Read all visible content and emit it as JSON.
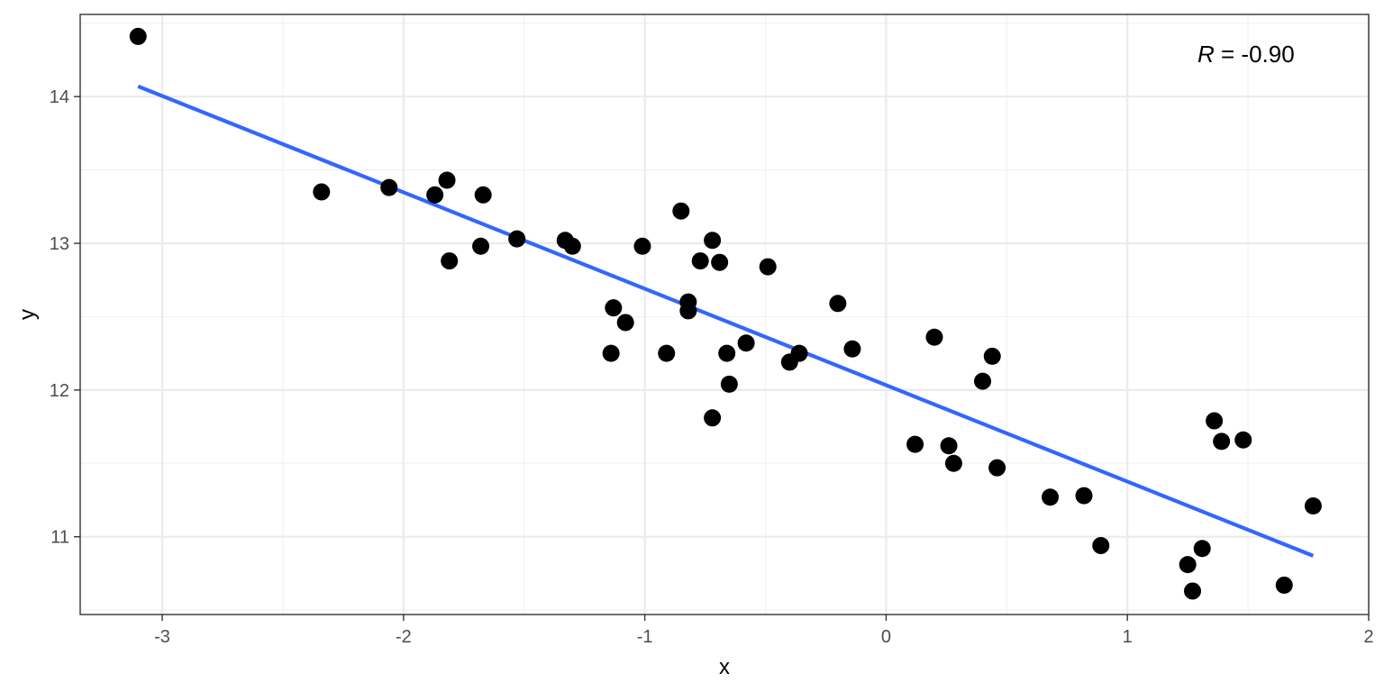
{
  "chart_data": {
    "type": "scatter",
    "xlabel": "x",
    "ylabel": "y",
    "xlim": [
      -3.34,
      2.0
    ],
    "ylim": [
      10.47,
      14.56
    ],
    "x_ticks": [
      -3,
      -2,
      -1,
      0,
      1,
      2
    ],
    "y_ticks": [
      11,
      12,
      13,
      14
    ],
    "x_tick_labels": [
      "-3",
      "-2",
      "-1",
      "0",
      "1",
      "2"
    ],
    "y_tick_labels": [
      "11",
      "12",
      "13",
      "14"
    ],
    "grid": true,
    "annotation": {
      "symbol": "R",
      "text": " = -0.90"
    },
    "series": [
      {
        "type": "points",
        "color": "#000000",
        "points": [
          {
            "x": -3.1,
            "y": 14.41
          },
          {
            "x": -2.34,
            "y": 13.35
          },
          {
            "x": -2.06,
            "y": 13.38
          },
          {
            "x": -1.87,
            "y": 13.33
          },
          {
            "x": -1.82,
            "y": 13.43
          },
          {
            "x": -1.81,
            "y": 12.88
          },
          {
            "x": -1.68,
            "y": 12.98
          },
          {
            "x": -1.67,
            "y": 13.33
          },
          {
            "x": -1.53,
            "y": 13.03
          },
          {
            "x": -1.33,
            "y": 13.02
          },
          {
            "x": -1.3,
            "y": 12.98
          },
          {
            "x": -1.14,
            "y": 12.25
          },
          {
            "x": -1.13,
            "y": 12.56
          },
          {
            "x": -1.08,
            "y": 12.46
          },
          {
            "x": -1.01,
            "y": 12.98
          },
          {
            "x": -0.91,
            "y": 12.25
          },
          {
            "x": -0.85,
            "y": 13.22
          },
          {
            "x": -0.82,
            "y": 12.6
          },
          {
            "x": -0.82,
            "y": 12.54
          },
          {
            "x": -0.77,
            "y": 12.88
          },
          {
            "x": -0.72,
            "y": 13.02
          },
          {
            "x": -0.72,
            "y": 11.81
          },
          {
            "x": -0.69,
            "y": 12.87
          },
          {
            "x": -0.66,
            "y": 12.25
          },
          {
            "x": -0.65,
            "y": 12.04
          },
          {
            "x": -0.58,
            "y": 12.32
          },
          {
            "x": -0.49,
            "y": 12.84
          },
          {
            "x": -0.4,
            "y": 12.19
          },
          {
            "x": -0.36,
            "y": 12.25
          },
          {
            "x": -0.2,
            "y": 12.59
          },
          {
            "x": -0.14,
            "y": 12.28
          },
          {
            "x": 0.12,
            "y": 11.63
          },
          {
            "x": 0.2,
            "y": 12.36
          },
          {
            "x": 0.26,
            "y": 11.62
          },
          {
            "x": 0.28,
            "y": 11.5
          },
          {
            "x": 0.4,
            "y": 12.06
          },
          {
            "x": 0.44,
            "y": 12.23
          },
          {
            "x": 0.46,
            "y": 11.47
          },
          {
            "x": 0.68,
            "y": 11.27
          },
          {
            "x": 0.82,
            "y": 11.28
          },
          {
            "x": 0.89,
            "y": 10.94
          },
          {
            "x": 1.25,
            "y": 10.81
          },
          {
            "x": 1.27,
            "y": 10.63
          },
          {
            "x": 1.31,
            "y": 10.92
          },
          {
            "x": 1.36,
            "y": 11.79
          },
          {
            "x": 1.39,
            "y": 11.65
          },
          {
            "x": 1.48,
            "y": 11.66
          },
          {
            "x": 1.65,
            "y": 10.67
          },
          {
            "x": 1.77,
            "y": 11.21
          }
        ]
      },
      {
        "type": "line",
        "color": "#3366FF",
        "points": [
          {
            "x": -3.1,
            "y": 14.07
          },
          {
            "x": 1.77,
            "y": 10.87
          }
        ]
      }
    ]
  }
}
